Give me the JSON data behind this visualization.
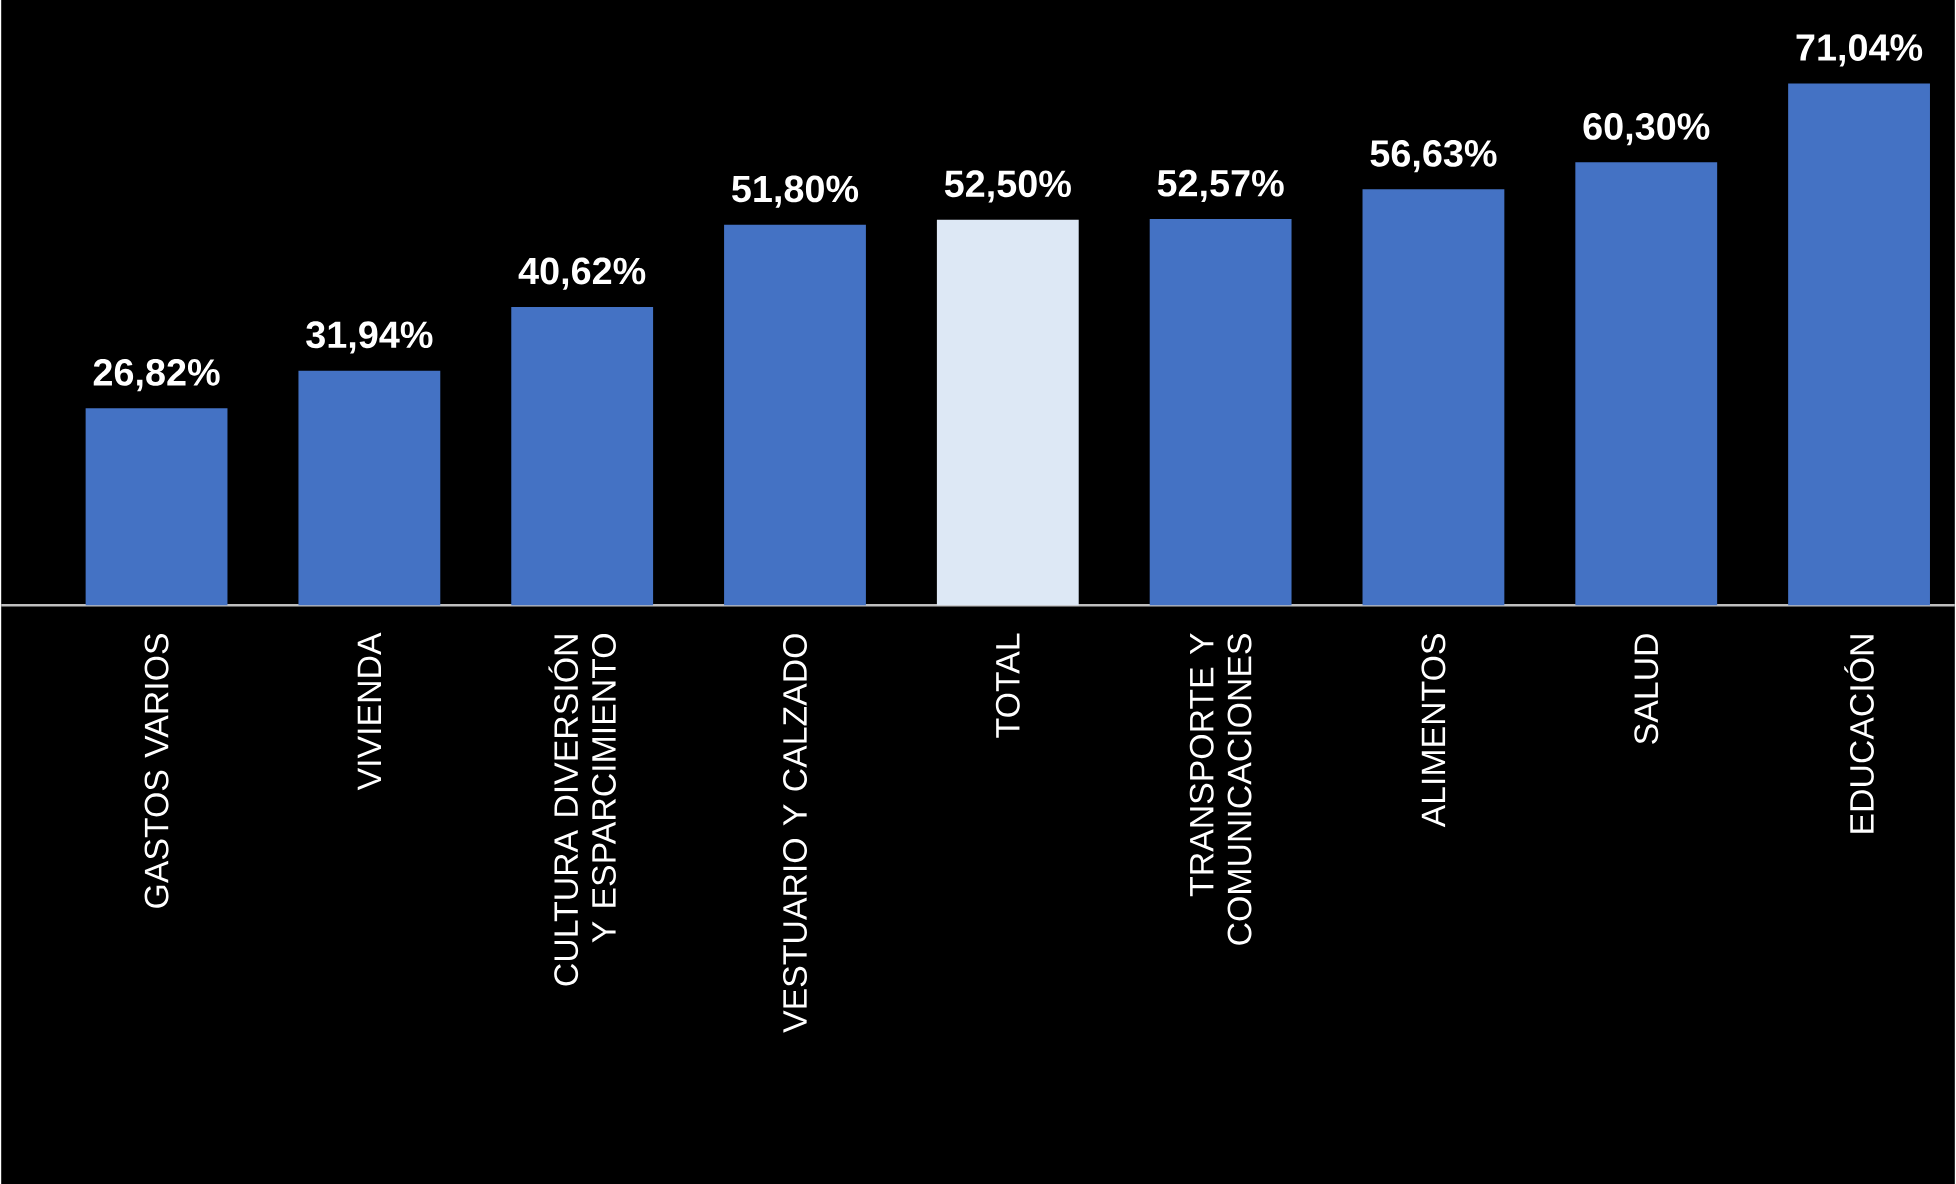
{
  "chart_data": {
    "type": "bar",
    "categories": [
      "GASTOS VARIOS",
      "VIVIENDA",
      "CULTURA DIVERSIÓN Y ESPARCIMIENTO",
      "VESTUARIO Y CALZADO",
      "TOTAL",
      "TRANSPORTE Y COMUNICACIONES",
      "ALIMENTOS",
      "SALUD",
      "EDUCACIÓN"
    ],
    "values": [
      26.82,
      31.94,
      40.62,
      51.8,
      52.5,
      52.57,
      56.63,
      60.3,
      71.04
    ],
    "value_labels": [
      "26,82%",
      "31,94%",
      "40,62%",
      "51,80%",
      "52,50%",
      "52,57%",
      "56,63%",
      "60,30%",
      "71,04%"
    ],
    "colors": [
      "#4472c4",
      "#4472c4",
      "#4472c4",
      "#4472c4",
      "#dde8f5",
      "#4472c4",
      "#4472c4",
      "#4472c4",
      "#4472c4"
    ]
  }
}
